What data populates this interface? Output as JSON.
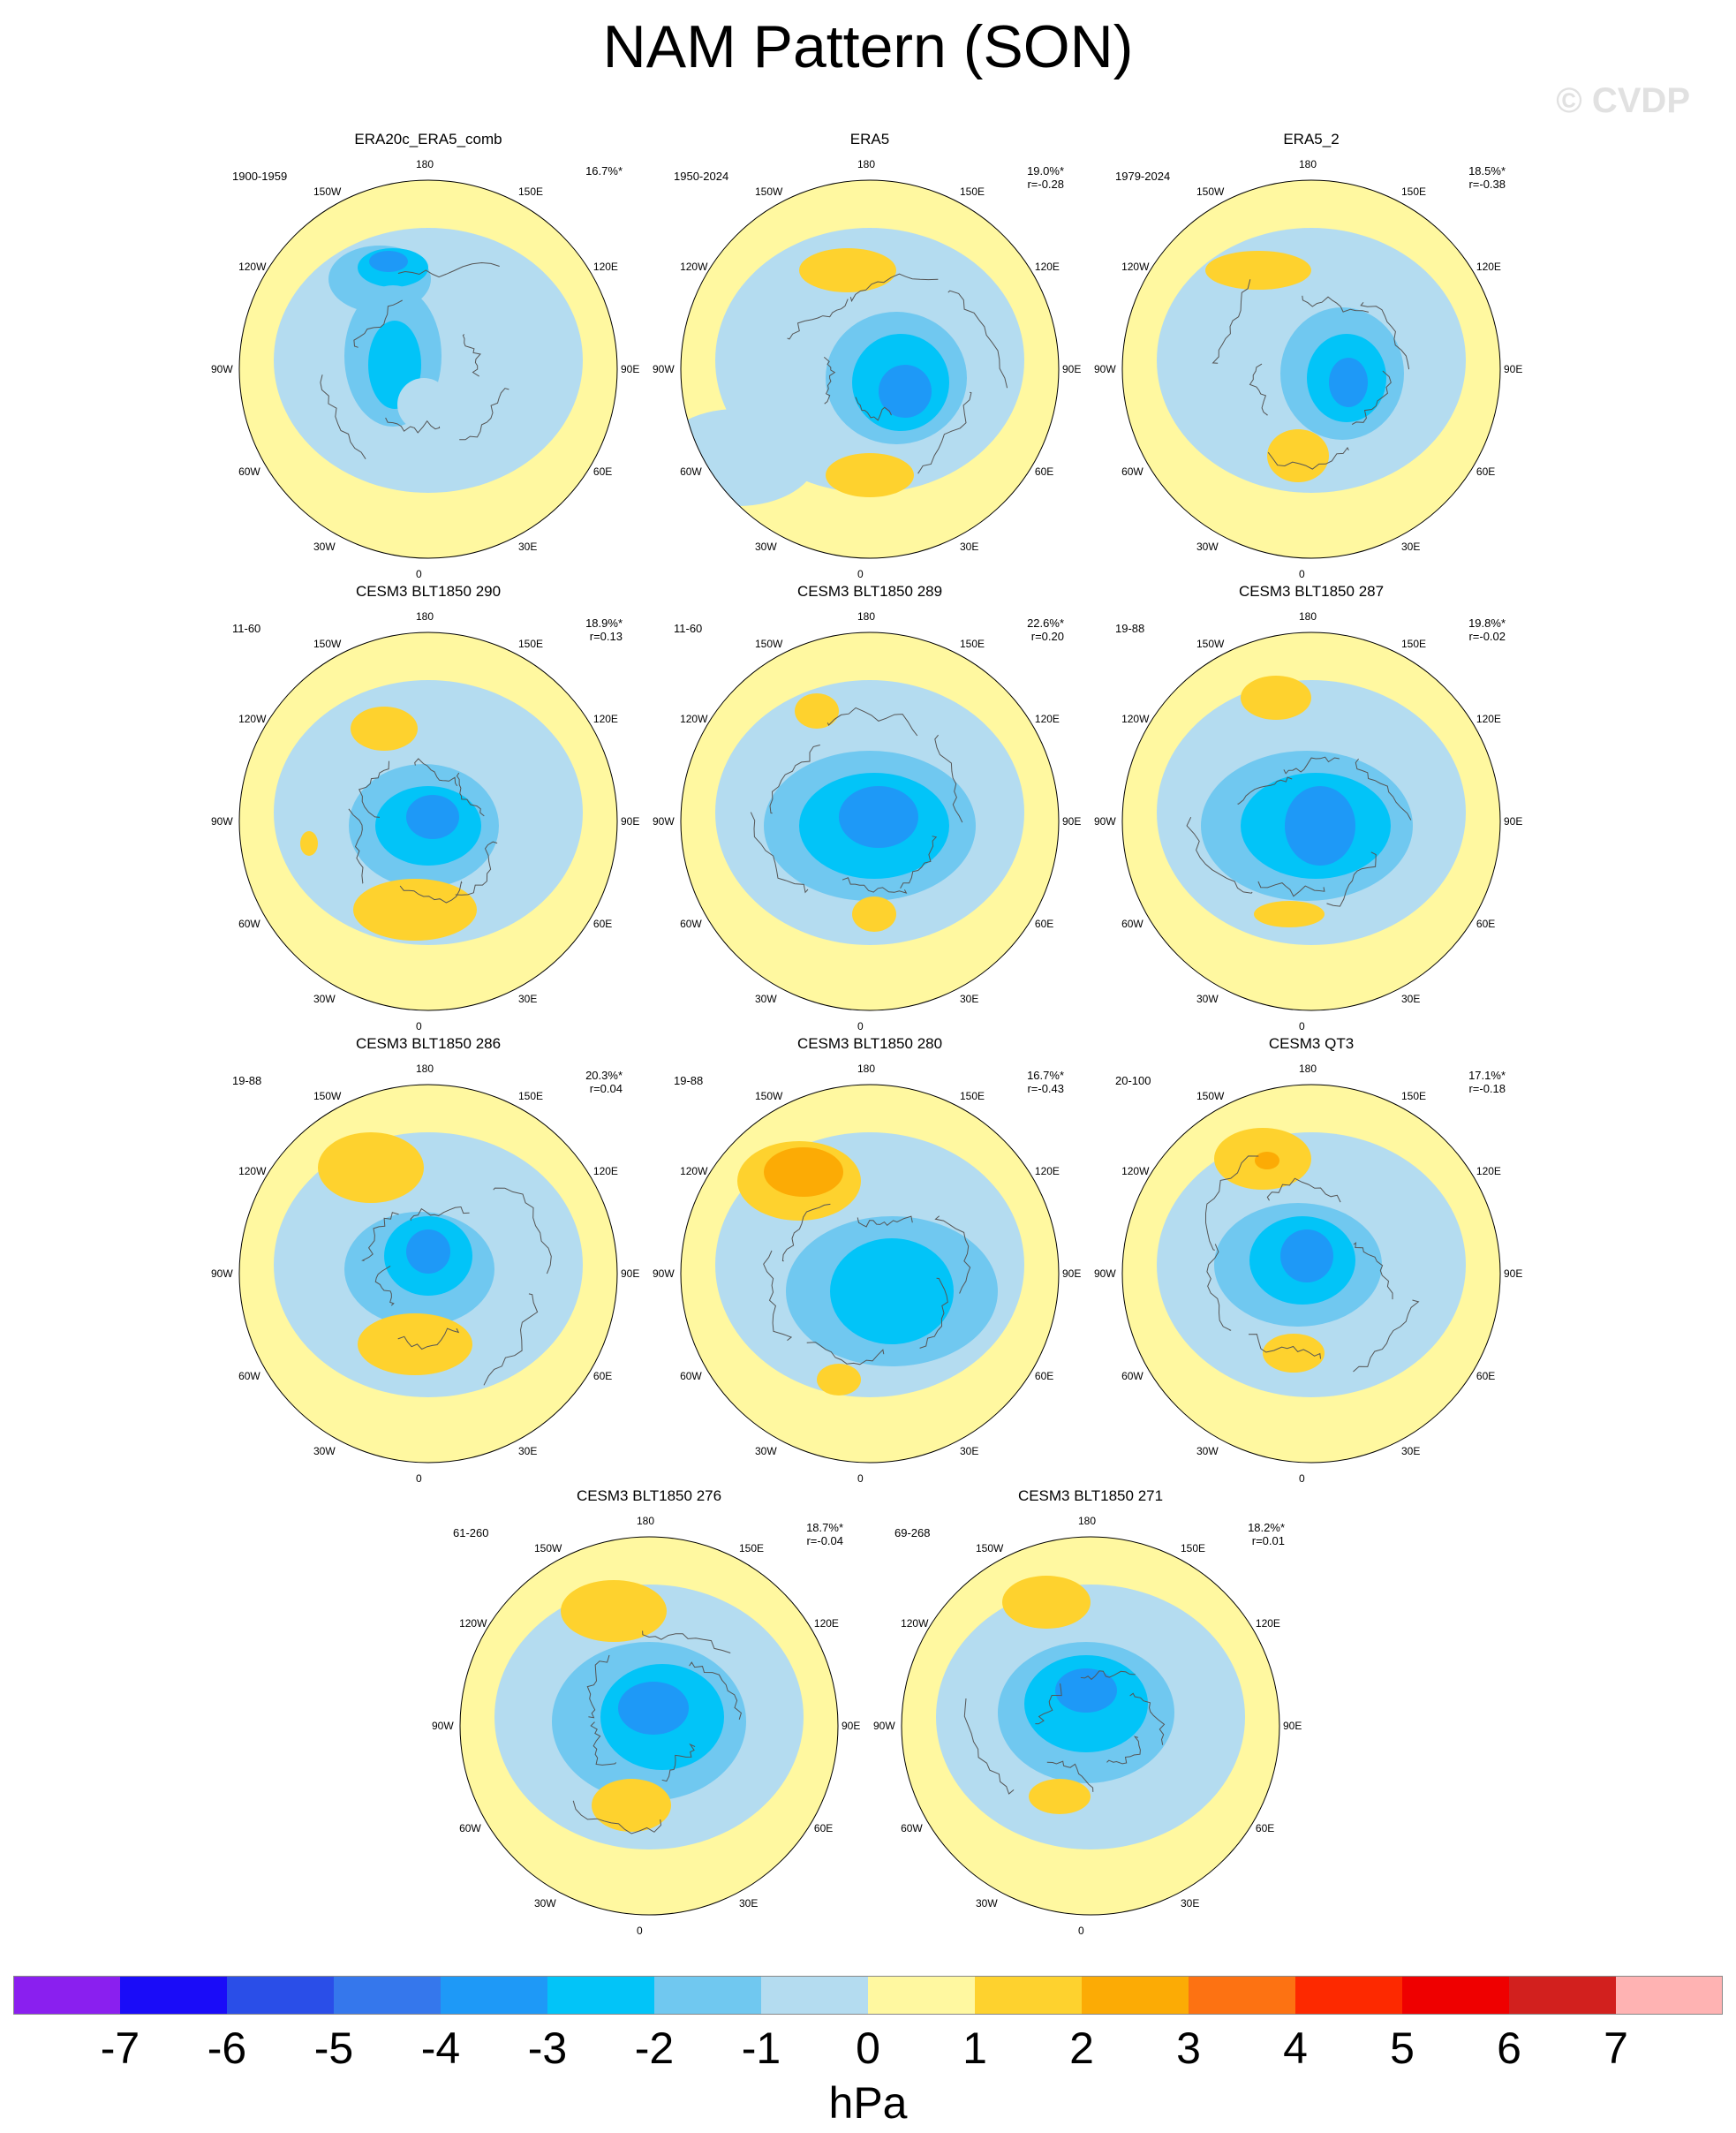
{
  "title": "NAM Pattern (SON)",
  "watermark": "© CVDP",
  "units": "hPa",
  "colorbar": {
    "labels": [
      "-7",
      "-6",
      "-5",
      "-4",
      "-3",
      "-2",
      "-1",
      "0",
      "1",
      "2",
      "3",
      "4",
      "5",
      "6",
      "7"
    ],
    "colors": [
      "#8a1fef",
      "#1a0cf8",
      "#2a4ee8",
      "#3577ec",
      "#1e99f7",
      "#02c4f8",
      "#70c8f0",
      "#b4dcf0",
      "#fff8a0",
      "#fed22e",
      "#fcab05",
      "#fd7212",
      "#fd2900",
      "#ef0000",
      "#d2201e",
      "#ffb3b3"
    ]
  },
  "lon_labels": [
    "180",
    "150E",
    "120E",
    "90E",
    "60E",
    "30E",
    "0",
    "30W",
    "60W",
    "90W",
    "120W",
    "150W"
  ],
  "panels": [
    {
      "title": "ERA20c_ERA5_comb",
      "period": "1900-1959",
      "stats": "16.7%*"
    },
    {
      "title": "ERA5",
      "period": "1950-2024",
      "stats": "19.0%*\nr=-0.28"
    },
    {
      "title": "ERA5_2",
      "period": "1979-2024",
      "stats": "18.5%*\nr=-0.38"
    },
    {
      "title": "CESM3 BLT1850 290",
      "period": "11-60",
      "stats": "18.9%*\nr=0.13"
    },
    {
      "title": "CESM3 BLT1850 289",
      "period": "11-60",
      "stats": "22.6%*\nr=0.20"
    },
    {
      "title": "CESM3 BLT1850 287",
      "period": "19-88",
      "stats": "19.8%*\nr=-0.02"
    },
    {
      "title": "CESM3 BLT1850 286",
      "period": "19-88",
      "stats": "20.3%*\nr=0.04"
    },
    {
      "title": "CESM3 BLT1850 280",
      "period": "19-88",
      "stats": "16.7%*\nr=-0.43"
    },
    {
      "title": "CESM3 QT3",
      "period": "20-100",
      "stats": "17.1%*\nr=-0.18"
    },
    {
      "title": "CESM3 BLT1850 276",
      "period": "61-260",
      "stats": "18.7%*\nr=-0.04"
    },
    {
      "title": "CESM3 BLT1850 271",
      "period": "69-268",
      "stats": "18.2%*\nr=0.01"
    }
  ]
}
